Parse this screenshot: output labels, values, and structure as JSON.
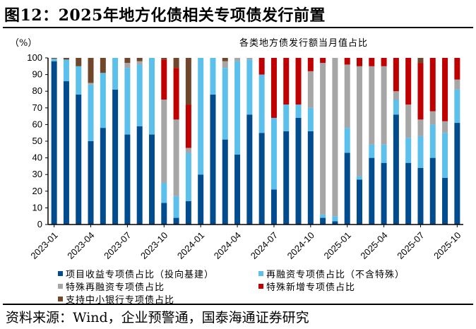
{
  "title": "图12：2025年地方化债相关专项债发行前置",
  "source": "资料来源：Wind，企业预警通，国泰海通证券研究",
  "chart_data": {
    "type": "bar",
    "stacked": true,
    "title": "各类地方债发行额当月值占比",
    "ylabel": "（%）",
    "xlabel": "",
    "ylim": [
      0,
      100
    ],
    "yticks": [
      0,
      10,
      20,
      30,
      40,
      50,
      60,
      70,
      80,
      90,
      100
    ],
    "x_tick_labels": [
      "2023-01",
      "2023-04",
      "2023-07",
      "2023-10",
      "2024-01",
      "2024-04",
      "2024-07",
      "2024-10",
      "2025-01",
      "2025-04",
      "2025-07",
      "2025-10"
    ],
    "categories": [
      "2023-01",
      "2023-02",
      "2023-03",
      "2023-04",
      "2023-05",
      "2023-06",
      "2023-07",
      "2023-08",
      "2023-09",
      "2023-10",
      "2023-11",
      "2023-12",
      "2024-01",
      "2024-02",
      "2024-03",
      "2024-04",
      "2024-05",
      "2024-06",
      "2024-07",
      "2024-08",
      "2024-09",
      "2024-10",
      "2024-11",
      "2024-12",
      "2025-01",
      "2025-02",
      "2025-03",
      "2025-04",
      "2025-05",
      "2025-06",
      "2025-07",
      "2025-08",
      "2025-09",
      "2025-10"
    ],
    "legend_position": "bottom",
    "series": [
      {
        "name": "项目收益专项债占比（投向基建）",
        "color": "#004C8F",
        "values": [
          98,
          86,
          78,
          50,
          58,
          81,
          54,
          59,
          54,
          13,
          4,
          14,
          30,
          78,
          51,
          42,
          66,
          55,
          21,
          56,
          64,
          56,
          4,
          2,
          43,
          27,
          40,
          37,
          66,
          37,
          34,
          40,
          28,
          61
        ]
      },
      {
        "name": "再融资专项债占比（不含特殊）",
        "color": "#5BC0EB",
        "values": [
          1.5,
          13,
          17,
          34,
          33,
          19,
          40,
          37,
          46,
          12,
          13,
          29,
          70,
          22,
          43,
          56,
          33,
          35,
          43,
          16,
          8,
          14,
          2,
          3,
          15,
          2,
          8,
          11,
          9,
          15,
          19,
          20,
          27,
          20
        ]
      },
      {
        "name": "特殊再融资专项债占比",
        "color": "#A6A6A6",
        "values": [
          0,
          0,
          0,
          1,
          0,
          0,
          3,
          2,
          0,
          50,
          46,
          3,
          0,
          0,
          4,
          2,
          1,
          0,
          0,
          0,
          0,
          22,
          91,
          95,
          38,
          66,
          47,
          47,
          5,
          20,
          10,
          8,
          7,
          6
        ]
      },
      {
        "name": "特殊新增专项债占比",
        "color": "#C00000",
        "values": [
          0,
          0,
          0,
          0,
          0,
          0,
          0,
          0,
          0,
          24,
          31,
          26,
          0,
          0,
          0,
          0,
          0,
          10,
          36,
          28,
          28,
          8,
          3,
          0,
          4,
          5,
          5,
          5,
          20,
          28,
          34,
          32,
          38,
          13
        ]
      },
      {
        "name": "支持中小银行专项债占比",
        "color": "#70472B",
        "values": [
          0.5,
          1,
          5,
          15,
          9,
          0,
          3,
          2,
          0,
          1,
          6,
          28,
          0,
          0,
          2,
          0,
          0,
          0,
          0,
          0,
          0,
          0,
          0,
          0,
          0,
          0,
          0,
          0,
          0,
          0,
          3,
          0,
          0,
          0
        ]
      }
    ]
  }
}
